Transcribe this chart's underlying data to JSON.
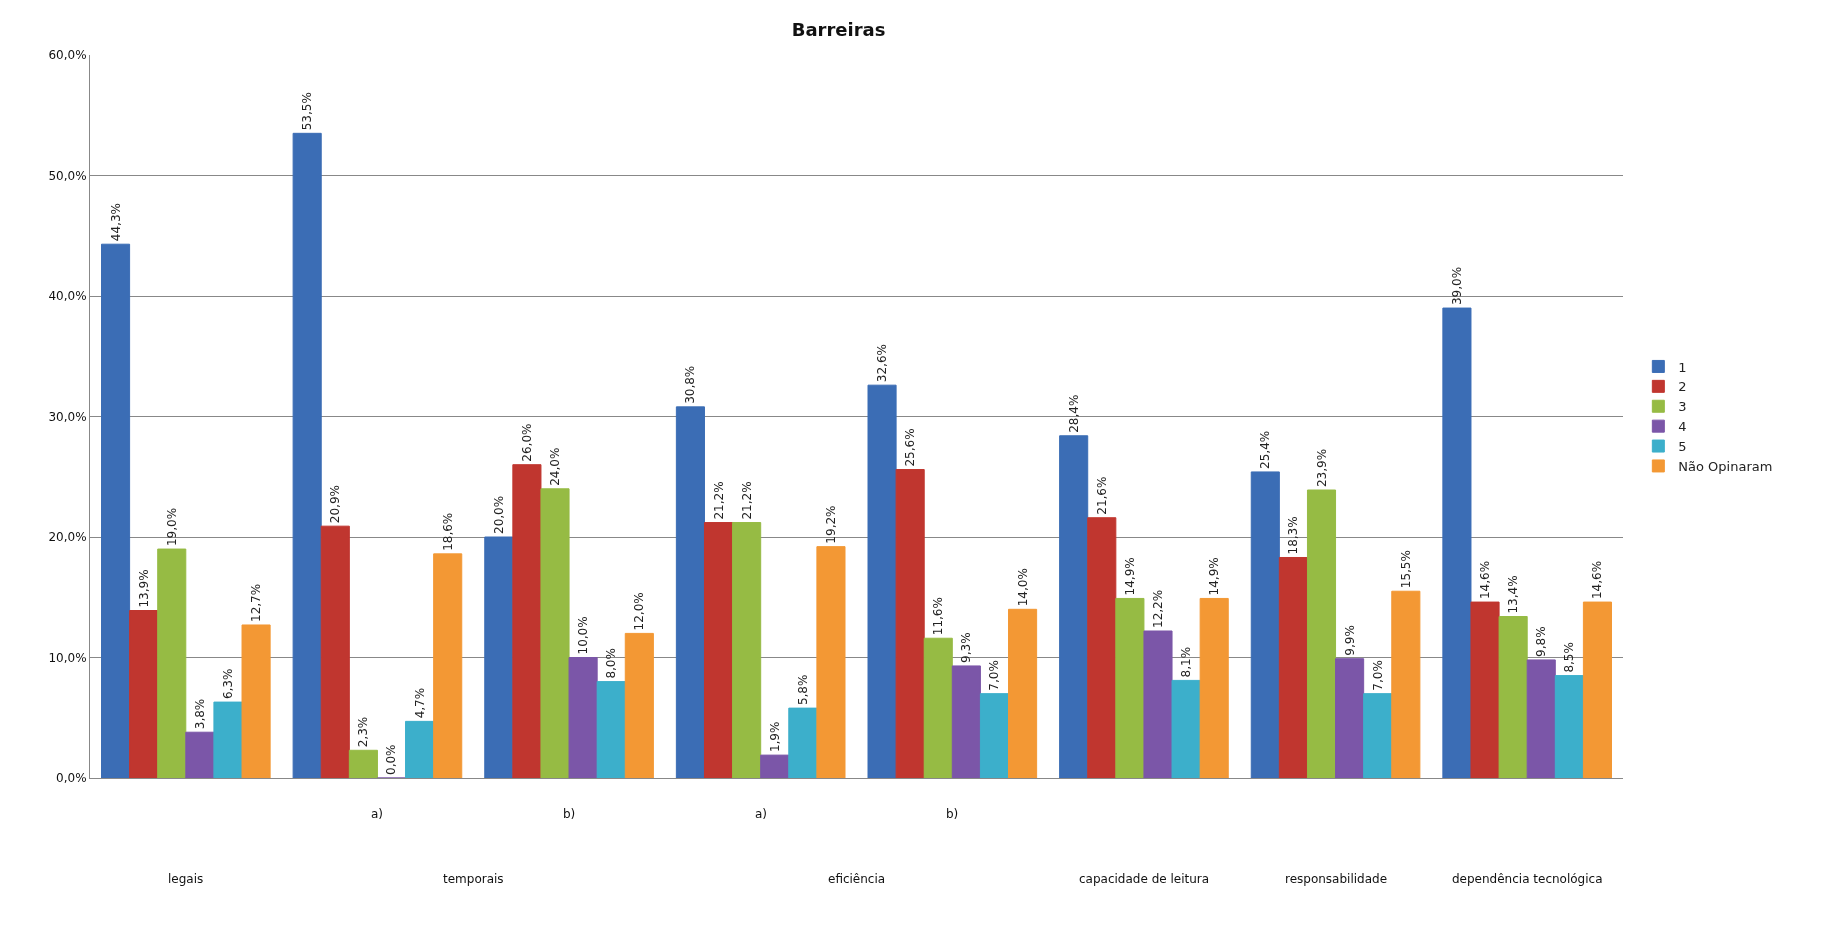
{
  "chart_data": {
    "type": "bar",
    "title": "Barreiras",
    "categories": [
      "legais",
      "a)",
      "b)",
      "a)",
      "b)",
      "capacidade de leitura",
      "responsabilidade",
      "dependência tecnológica"
    ],
    "annotations": [
      "temporais",
      "eficiência"
    ],
    "series": [
      {
        "name": "1",
        "color": "#3b6db5",
        "values": [
          44.3,
          53.5,
          20.0,
          30.8,
          32.6,
          28.4,
          25.4,
          39.0
        ],
        "value_labels": [
          "44,3%",
          "53,5%",
          "20,0%",
          "30,8%",
          "32,6%",
          "28,4%",
          "25,4%",
          "39,0%"
        ]
      },
      {
        "name": "2",
        "color": "#c0362f",
        "values": [
          13.9,
          20.9,
          26.0,
          21.2,
          25.6,
          21.6,
          18.3,
          14.6
        ],
        "value_labels": [
          "13,9%",
          "20,9%",
          "26,0%",
          "21,2%",
          "25,6%",
          "21,6%",
          "18,3%",
          "14,6%"
        ]
      },
      {
        "name": "3",
        "color": "#96bb44",
        "values": [
          19.0,
          2.3,
          24.0,
          21.2,
          11.6,
          14.9,
          23.9,
          13.4
        ],
        "value_labels": [
          "19,0%",
          "2,3%",
          "24,0%",
          "21,2%",
          "11,6%",
          "14,9%",
          "23,9%",
          "13,4%"
        ]
      },
      {
        "name": "4",
        "color": "#7b56a8",
        "values": [
          3.8,
          0.0,
          10.0,
          1.9,
          9.3,
          12.2,
          9.9,
          9.8
        ],
        "value_labels": [
          "3,8%",
          "0,0%",
          "10,0%",
          "1,9%",
          "9,3%",
          "12,2%",
          "9,9%",
          "9,8%"
        ]
      },
      {
        "name": "5",
        "color": "#3cafcb",
        "values": [
          6.3,
          4.7,
          8.0,
          5.8,
          7.0,
          8.1,
          7.0,
          8.5
        ],
        "value_labels": [
          "6,3%",
          "4,7%",
          "8,0%",
          "5,8%",
          "7,0%",
          "8,1%",
          "7,0%",
          "8,5%"
        ]
      },
      {
        "name": "Não Opinaram",
        "color": "#f39834",
        "values": [
          12.7,
          18.6,
          12.0,
          19.2,
          14.0,
          14.9,
          15.5,
          14.6
        ],
        "value_labels": [
          "12,7%",
          "18,6%",
          "12,0%",
          "19,2%",
          "14,0%",
          "14,9%",
          "15,5%",
          "14,6%"
        ]
      }
    ],
    "ylim": [
      0,
      60
    ],
    "yticks": [
      {
        "value": 0,
        "label": "0,0%"
      },
      {
        "value": 10,
        "label": "10,0%"
      },
      {
        "value": 20,
        "label": "20,0%"
      },
      {
        "value": 30,
        "label": "30,0%"
      },
      {
        "value": 40,
        "label": "40,0%"
      },
      {
        "value": 50,
        "label": "50,0%"
      },
      {
        "value": 60,
        "label": "60,0%"
      }
    ],
    "grid": "y",
    "legend": "right"
  }
}
